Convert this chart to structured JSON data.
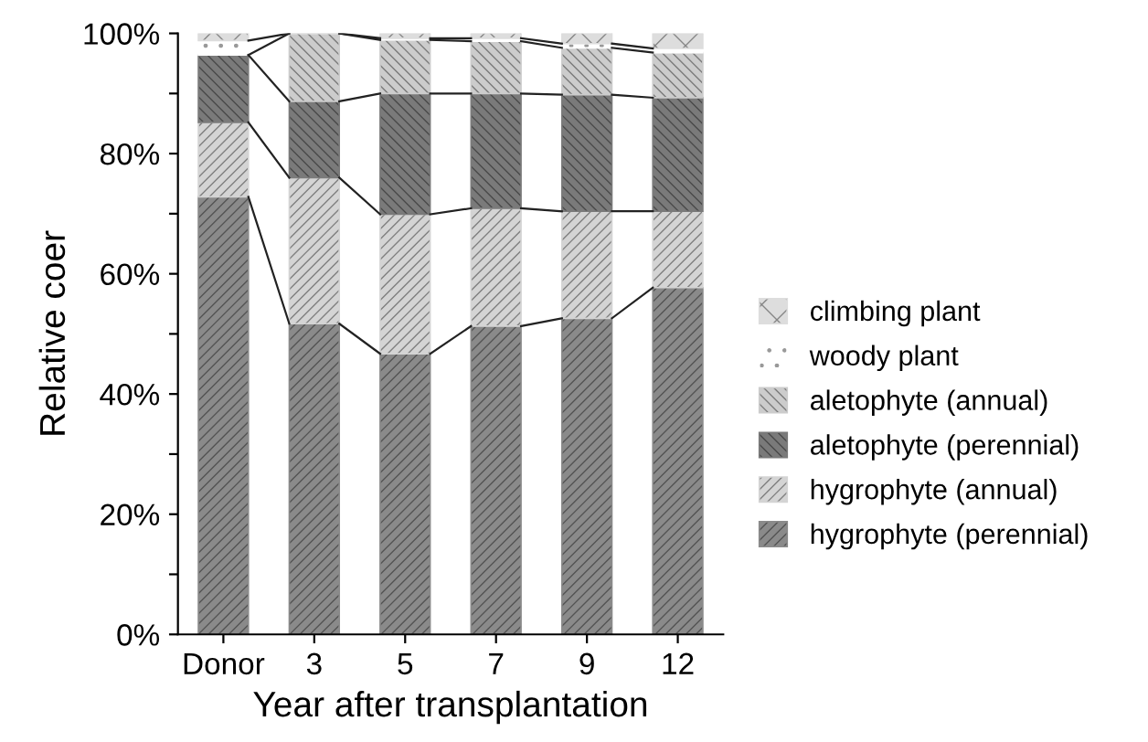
{
  "chart_data": {
    "type": "bar",
    "stacked": true,
    "xlabel": "Year after transplantation",
    "ylabel": "Relative coer",
    "categories": [
      "Donor",
      "3",
      "5",
      "7",
      "9",
      "12"
    ],
    "series": [
      {
        "name": "hygrophyte (perennial)",
        "color": "#8a8a8a",
        "values": [
          72.8,
          51.7,
          46.7,
          51.3,
          52.6,
          57.7
        ]
      },
      {
        "name": "hygrophyte (annual)",
        "color": "#d4d4d4",
        "values": [
          12.4,
          24.3,
          23.2,
          19.6,
          17.8,
          12.7
        ]
      },
      {
        "name": "aletophyte (perennial)",
        "color": "#7a7a7a",
        "values": [
          11.2,
          12.7,
          20.1,
          19.1,
          19.4,
          18.9
        ]
      },
      {
        "name": "aletophyte (annual)",
        "color": "#cccccc",
        "values": [
          0,
          11.3,
          8.9,
          8.7,
          7.8,
          7.5
        ]
      },
      {
        "name": "woody plant",
        "color": "#ffffff",
        "values": [
          2.4,
          0,
          0.3,
          0.5,
          0.7,
          0.7
        ]
      },
      {
        "name": "climbing plant",
        "color": "#dddddd",
        "values": [
          1.2,
          0,
          0.8,
          0.8,
          1.7,
          2.5
        ]
      }
    ],
    "ylim": [
      0,
      100
    ],
    "yticks": [
      {
        "value": 0,
        "label": "0%"
      },
      {
        "value": 10,
        "label": null
      },
      {
        "value": 20,
        "label": "20%"
      },
      {
        "value": 30,
        "label": null
      },
      {
        "value": 40,
        "label": "40%"
      },
      {
        "value": 50,
        "label": null
      },
      {
        "value": 60,
        "label": "60%"
      },
      {
        "value": 70,
        "label": null
      },
      {
        "value": 80,
        "label": "80%"
      },
      {
        "value": 90,
        "label": null
      },
      {
        "value": 100,
        "label": "100%"
      }
    ],
    "grid": false,
    "legend": "right"
  }
}
